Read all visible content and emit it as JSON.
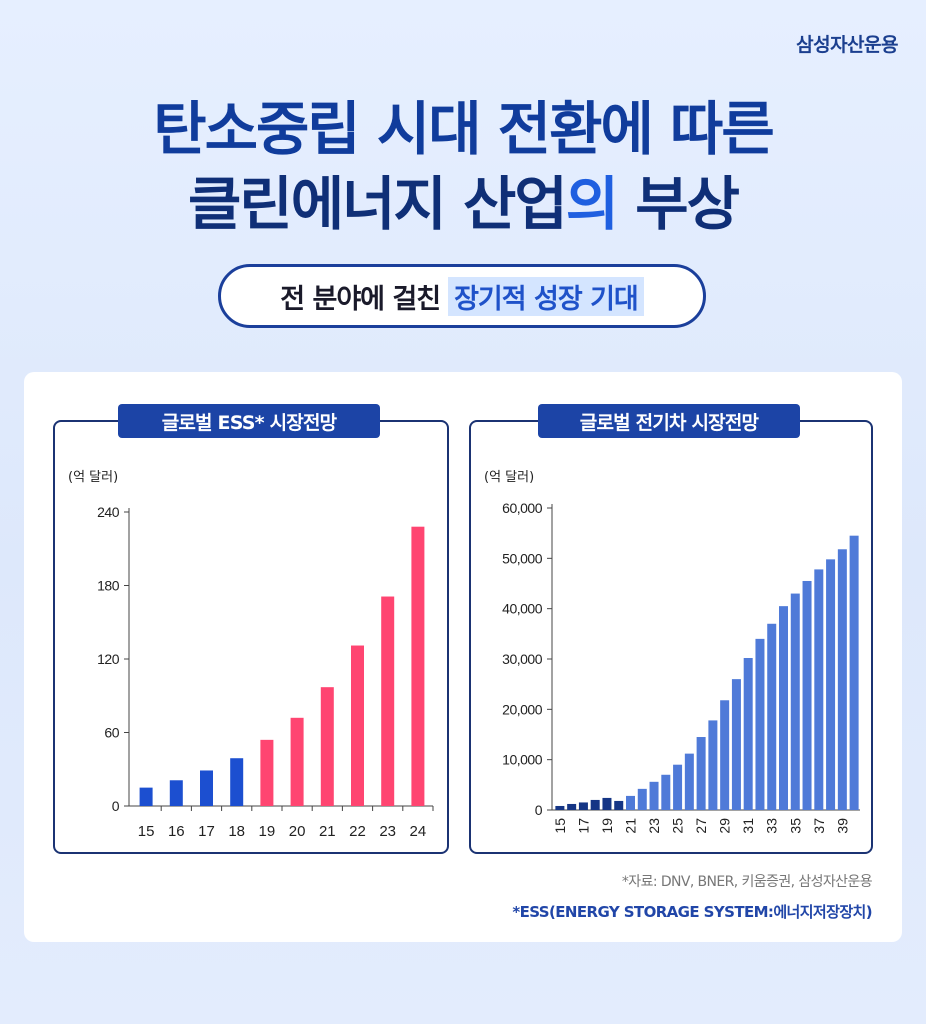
{
  "brand": "삼성자산운용",
  "headline": {
    "line1": "탄소중립 시대 전환에 따른",
    "line2_main": "클린에너지 산업",
    "line2_accent": "의",
    "line2_end": " 부상"
  },
  "subtitle": {
    "plain": "전 분야에 걸친",
    "highlight": "장기적 성장 기대"
  },
  "chart_data": [
    {
      "type": "bar",
      "title": "글로벌 ESS* 시장전망",
      "ylabel": "(억 달러)",
      "categories": [
        "15",
        "16",
        "17",
        "18",
        "19",
        "20",
        "21",
        "22",
        "23",
        "24"
      ],
      "values": [
        15,
        21,
        29,
        39,
        54,
        72,
        97,
        131,
        171,
        228
      ],
      "yticks": [
        0,
        60,
        120,
        180,
        240
      ],
      "ytick_labels": [
        "0",
        "60",
        "120",
        "180",
        "240"
      ],
      "ylim": [
        0,
        240
      ],
      "colors": {
        "actual": "#1c4fd0",
        "forecast": "#ff4571"
      },
      "forecast_from_index": 4,
      "grid": false
    },
    {
      "type": "bar",
      "title": "글로벌 전기차 시장전망",
      "ylabel": "(억 달러)",
      "categories": [
        "15",
        "16",
        "17",
        "18",
        "19",
        "20",
        "21",
        "22",
        "23",
        "24",
        "25",
        "26",
        "27",
        "28",
        "29",
        "30",
        "31",
        "32",
        "33",
        "34",
        "35",
        "36",
        "37",
        "38",
        "39",
        "40"
      ],
      "tick_labels": [
        "15",
        "17",
        "19",
        "21",
        "23",
        "25",
        "27",
        "29",
        "31",
        "33",
        "35",
        "37",
        "39"
      ],
      "values": [
        800,
        1200,
        1500,
        2000,
        2400,
        1800,
        2800,
        4200,
        5600,
        7000,
        9000,
        11200,
        14500,
        17800,
        21800,
        26000,
        30200,
        34000,
        37000,
        40500,
        43000,
        45500,
        47800,
        49800,
        51800,
        54500
      ],
      "yticks": [
        0,
        10000,
        20000,
        30000,
        40000,
        50000,
        60000
      ],
      "ytick_labels": [
        "0",
        "10,000",
        "20,000",
        "30,000",
        "40,000",
        "50,000",
        "60,000"
      ],
      "ylim": [
        0,
        60000
      ],
      "colors": {
        "actual": "#153585",
        "forecast": "#4f7ad8"
      },
      "forecast_from_index": 6,
      "grid": false
    }
  ],
  "notes": {
    "source": "*자료: DNV, BNER, 키움증권, 삼성자산운용",
    "ess": "*ESS(ENERGY STORAGE SYSTEM:에너지저장장치)"
  }
}
